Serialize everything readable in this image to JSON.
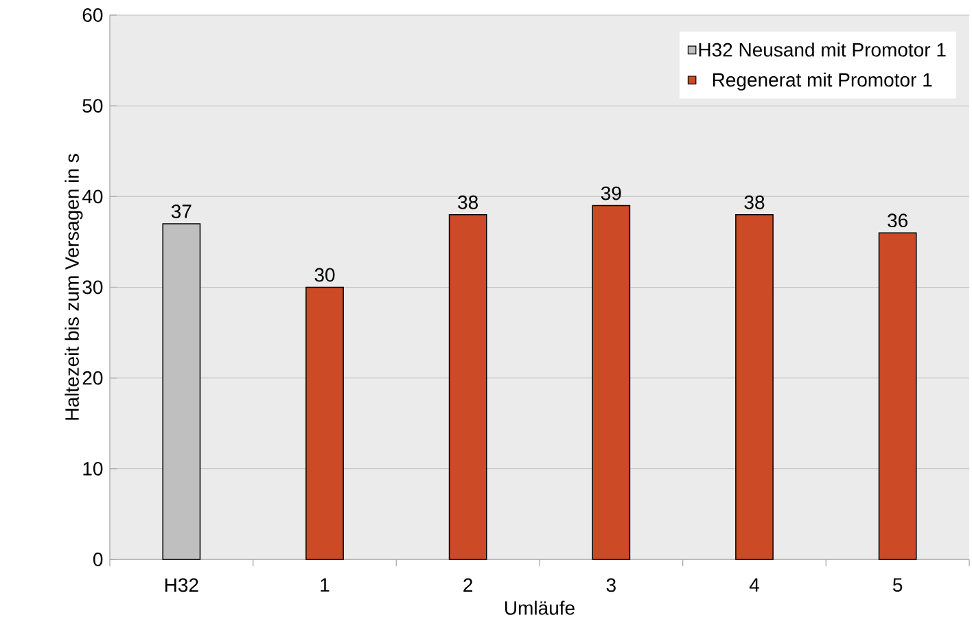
{
  "chart_data": {
    "type": "bar",
    "xlabel": "Umläufe",
    "ylabel": "Haltezeit bis zum Versagen in s",
    "categories": [
      "H32",
      "1",
      "2",
      "3",
      "4",
      "5"
    ],
    "series": [
      {
        "name": "H32 Neusand mit Promotor 1",
        "color": "#bfbfbf",
        "values": [
          37,
          null,
          null,
          null,
          null,
          null
        ]
      },
      {
        "name": "Regenerat mit Promotor 1",
        "color": "#cc4a25",
        "values": [
          null,
          30,
          38,
          39,
          38,
          36
        ]
      }
    ],
    "ylim": [
      0,
      60
    ],
    "yticks": [
      0,
      10,
      20,
      30,
      40,
      50,
      60
    ],
    "grid": "y",
    "legend": "top right",
    "data_labels": true
  }
}
